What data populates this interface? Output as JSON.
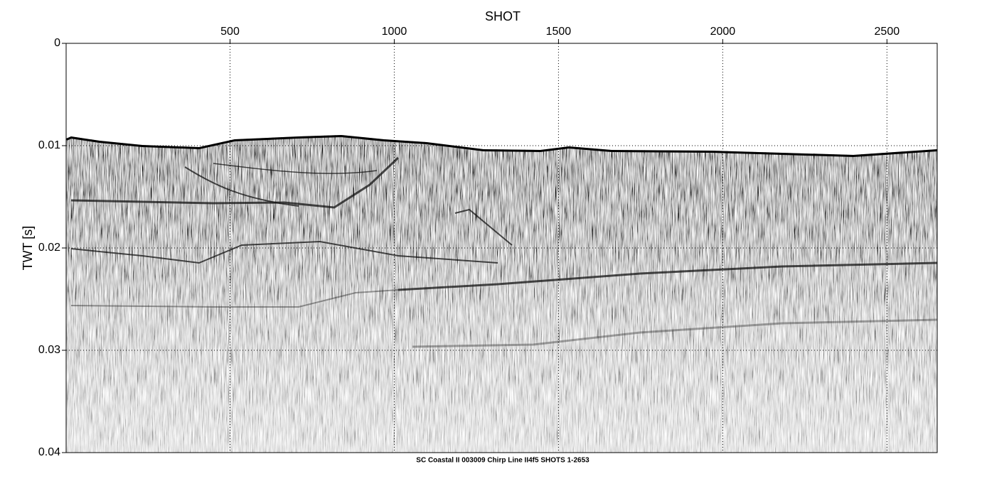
{
  "chart_data": {
    "type": "seismic",
    "title": "SHOT",
    "y_label": "TWT [s]",
    "caption": "SC Coastal II 003009 Chirp Line II4f5 SHOTS 1-2653",
    "xlim": [
      1,
      2653
    ],
    "xticks": [
      500,
      1000,
      1500,
      2000,
      2500
    ],
    "ylim": [
      0,
      0.04
    ],
    "yticks": [
      0,
      0.01,
      0.02,
      0.03,
      0.04
    ],
    "grid": true
  }
}
